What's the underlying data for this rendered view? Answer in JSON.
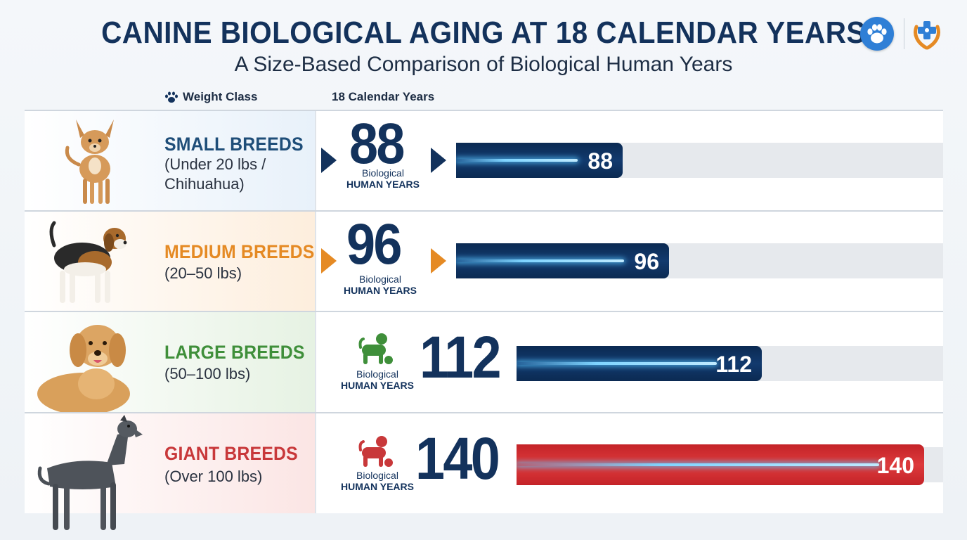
{
  "header": {
    "title": "CANINE BIOLOGICAL AGING AT 18 CALENDAR YEARS",
    "subtitle": "A Size-Based Comparison of Biological Human Years",
    "logos": [
      "paw-logo-icon",
      "vet-cross-logo-icon"
    ]
  },
  "columns": {
    "weight_class": "Weight Class",
    "calendar_years": "18 Calendar Years"
  },
  "colors": {
    "navy": "#13325c",
    "small_breeds": "#1f4e79",
    "medium_breeds": "#e58a24",
    "large_breeds": "#3f8f3a",
    "giant_breeds": "#c8383a",
    "bar_blue": "#0f325f",
    "bar_red": "#d32f2f"
  },
  "chart_data": {
    "type": "bar",
    "orientation": "horizontal",
    "title": "CANINE BIOLOGICAL AGING AT 18 CALENDAR YEARS",
    "subtitle": "A Size-Based Comparison of Biological Human Years",
    "categories": [
      "SMALL BREEDS",
      "MEDIUM BREEDS",
      "LARGE BREEDS",
      "GIANT BREEDS"
    ],
    "category_descriptions": [
      "(Under 20 lbs / Chihuahua)",
      "(20–50 lbs)",
      "(50–100 lbs)",
      "(Over 100 lbs)"
    ],
    "values": [
      88,
      96,
      112,
      140
    ],
    "value_label_line1": "Biological",
    "value_label_line2": "HUMAN YEARS",
    "bar_colors": [
      "#0f325f",
      "#0f325f",
      "#0f325f",
      "#d32f2f"
    ],
    "xlim": [
      0,
      140
    ],
    "legend": "none",
    "grid": false
  }
}
